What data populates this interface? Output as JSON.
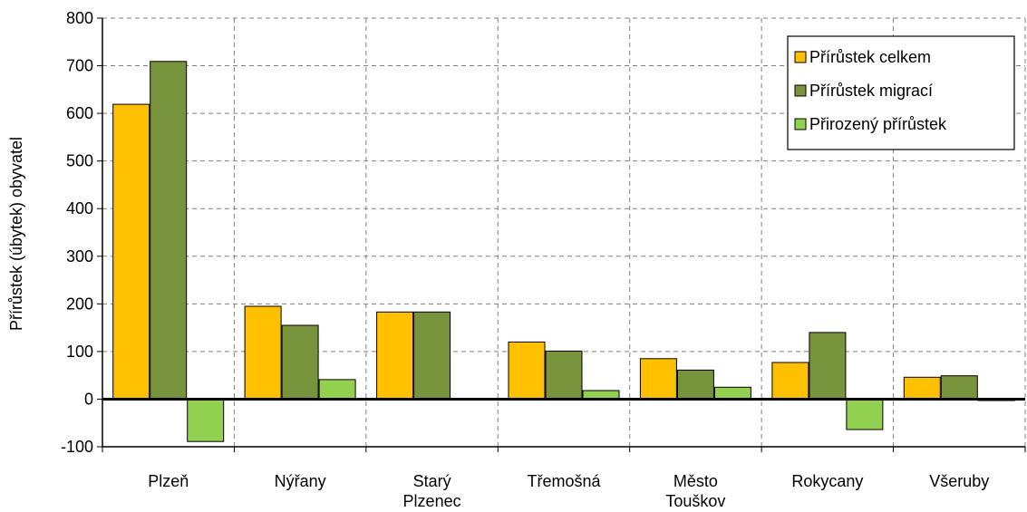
{
  "chart_data": {
    "type": "bar",
    "title": "",
    "xlabel": "",
    "ylabel": "Přírůstek (úbytek) obyvatel",
    "ylim": [
      -100,
      800
    ],
    "yticks": [
      -100,
      0,
      100,
      200,
      300,
      400,
      500,
      600,
      700,
      800
    ],
    "grid": true,
    "legend_position": "top-right",
    "categories": [
      [
        "Plzeň"
      ],
      [
        "Nýřany"
      ],
      [
        "Starý",
        "Plzenec"
      ],
      [
        "Třemošná"
      ],
      [
        "Město",
        "Touškov"
      ],
      [
        "Rokycany"
      ],
      [
        "Všeruby"
      ]
    ],
    "series": [
      {
        "name": "Přírůstek celkem",
        "color": "#FFC000",
        "values": [
          619,
          195,
          183,
          120,
          85,
          77,
          46
        ]
      },
      {
        "name": "Přírůstek migrací",
        "color": "#77933C",
        "values": [
          709,
          155,
          183,
          101,
          61,
          140,
          49
        ]
      },
      {
        "name": "Přirozený přírůstek",
        "color": "#92D050",
        "values": [
          -89,
          41,
          0,
          18,
          25,
          -64,
          -3
        ]
      }
    ]
  }
}
